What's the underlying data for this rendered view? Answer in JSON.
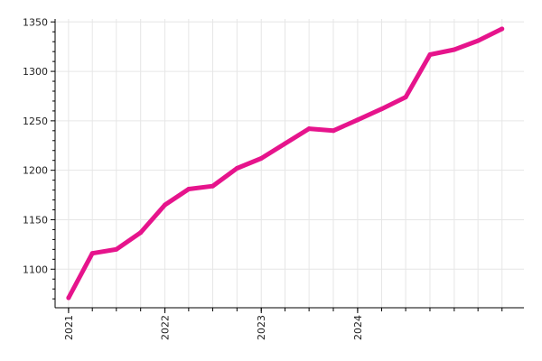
{
  "chart_data": {
    "type": "line",
    "title": "",
    "xlabel": "",
    "ylabel": "",
    "x": [
      "2021-01-01",
      "2021-04-01",
      "2021-07-01",
      "2021-10-01",
      "2022-01-01",
      "2022-04-01",
      "2022-07-01",
      "2022-10-01",
      "2023-01-01",
      "2023-04-01",
      "2023-07-01",
      "2023-10-01",
      "2024-01-01",
      "2024-04-01",
      "2024-07-01",
      "2024-10-01",
      "2025-01-01",
      "2025-04-01",
      "2025-07-01"
    ],
    "series": [
      {
        "name": "",
        "color": "#e6148c",
        "values": [
          1071,
          1116,
          1120,
          1137,
          1165,
          1181,
          1184,
          1202,
          1212,
          1227,
          1242,
          1240,
          1251,
          1262,
          1274,
          1317,
          1322,
          1331,
          1343
        ]
      }
    ],
    "ylim": [
      1061,
      1353
    ],
    "yticks": [
      1100,
      1150,
      1200,
      1250,
      1300,
      1350
    ],
    "xticks": [
      {
        "label": "2021",
        "date": "2021-01-01"
      },
      {
        "label": "2022",
        "date": "2022-01-01"
      },
      {
        "label": "2023",
        "date": "2023-01-01"
      },
      {
        "label": "2024",
        "date": "2024-01-01"
      }
    ],
    "grid": true,
    "legend": "none"
  }
}
